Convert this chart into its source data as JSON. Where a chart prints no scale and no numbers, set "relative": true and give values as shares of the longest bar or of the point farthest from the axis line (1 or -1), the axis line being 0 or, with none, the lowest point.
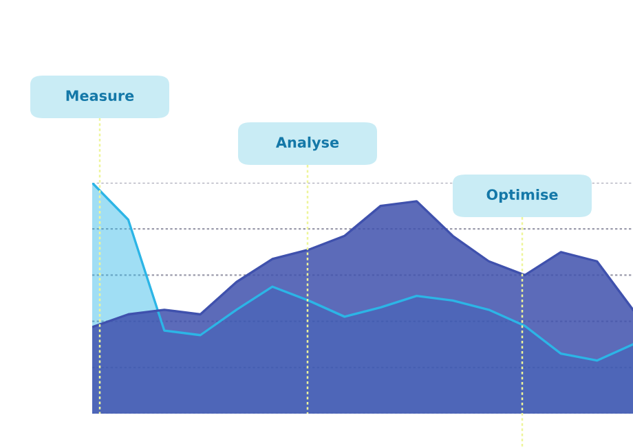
{
  "chart_data": {
    "type": "area",
    "relative": true,
    "grid": "y",
    "categories": [
      null,
      null,
      null,
      null,
      null,
      null,
      null,
      null,
      null,
      null,
      null,
      null,
      null,
      null,
      null,
      null
    ],
    "series": [
      {
        "color": "#3f51ad",
        "values": [
          0.375,
          0.43,
          0.45,
          0.43,
          0.57,
          0.67,
          0.71,
          0.77,
          0.9,
          0.92,
          0.77,
          0.66,
          0.6,
          0.7,
          0.66,
          0.45
        ]
      },
      {
        "color": "#2cb5e6",
        "values": [
          1.0,
          0.84,
          0.36,
          0.34,
          0.45,
          0.55,
          0.49,
          0.42,
          0.46,
          0.51,
          0.49,
          0.45,
          0.38,
          0.26,
          0.23,
          0.3
        ]
      }
    ],
    "annotations": [
      "Measure",
      "Analyse",
      "Optimise"
    ]
  }
}
